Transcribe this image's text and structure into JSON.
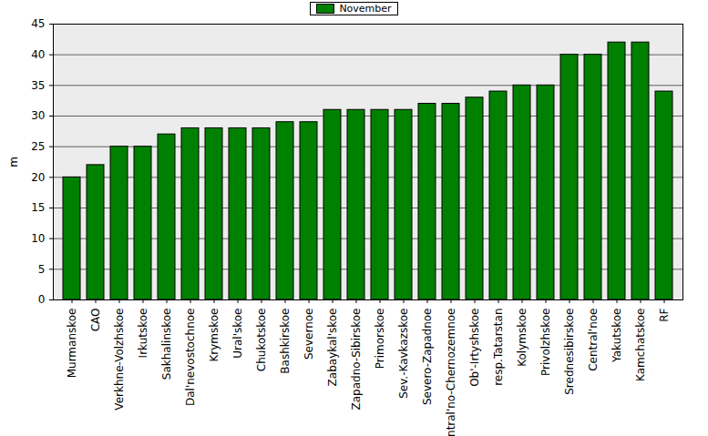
{
  "chart_data": {
    "type": "bar",
    "categories": [
      "Murmanskoe",
      "CAO",
      "Verkhne-Volzhskoe",
      "Irkutskoe",
      "Sakhalinskoe",
      "Dal'nevostochnoe",
      "Krymskoe",
      "Ural'skoe",
      "Chukotskoe",
      "Bashkirskoe",
      "Severnoe",
      "Zabaykal'skoe",
      "Zapadno-Sibirskoe",
      "Primorskoe",
      "Sev.-Kavkazskoe",
      "Severo-Zapadnoe",
      "Central'no-Chernozemnoe",
      "Ob'-Irtyshskoe",
      "resp.Tatarstan",
      "Kolymskoe",
      "Privolzhskoe",
      "Srednesibirskoe",
      "Central'noe",
      "Yakutskoe",
      "Kamchatskoe",
      "RF"
    ],
    "series": [
      {
        "name": "November",
        "color": "#008000",
        "values": [
          20,
          22,
          25,
          25,
          27,
          28,
          28,
          28,
          28,
          29,
          29,
          31,
          31,
          31,
          31,
          32,
          32,
          33,
          34,
          35,
          35,
          40,
          40,
          42,
          42,
          34
        ]
      }
    ],
    "y_label": "m",
    "ylim": [
      0,
      45
    ],
    "yticks": [
      0,
      5,
      10,
      15,
      20,
      25,
      30,
      35,
      40,
      45
    ],
    "grid": true,
    "legend": "top"
  }
}
